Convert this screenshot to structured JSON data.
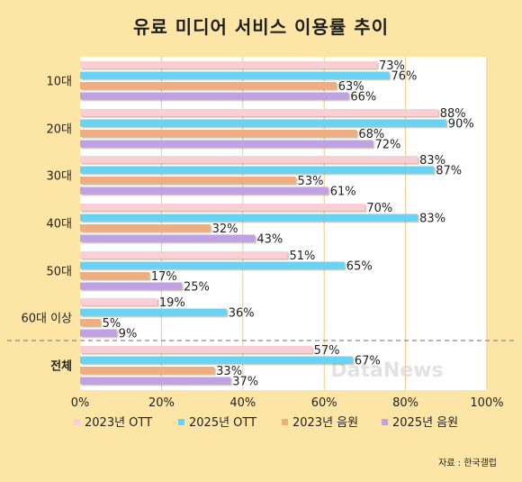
{
  "chart_data": {
    "type": "bar",
    "orientation": "horizontal",
    "title": "유료 미디어 서비스 이용률 추이",
    "categories": [
      "10대",
      "20대",
      "30대",
      "40대",
      "50대",
      "60대 이상",
      "전체"
    ],
    "series": [
      {
        "name": "2023년 OTT",
        "color": "#F9CFD3",
        "values": [
          73,
          88,
          83,
          70,
          51,
          19,
          57
        ]
      },
      {
        "name": "2025년 OTT",
        "color": "#69D3F6",
        "values": [
          76,
          90,
          87,
          83,
          65,
          36,
          67
        ]
      },
      {
        "name": "2023년 음원",
        "color": "#F0AE80",
        "values": [
          63,
          68,
          53,
          32,
          17,
          5,
          33
        ]
      },
      {
        "name": "2025년 음원",
        "color": "#BFA1E4",
        "values": [
          66,
          72,
          61,
          43,
          25,
          9,
          37
        ]
      }
    ],
    "value_suffix": "%",
    "xlim": [
      0,
      100
    ],
    "xticks": [
      "0%",
      "20%",
      "40%",
      "60%",
      "80%",
      "100%"
    ],
    "grid": true,
    "legend_position": "bottom",
    "source": "자료 : 한국갤럽",
    "watermark": "DataNews"
  }
}
